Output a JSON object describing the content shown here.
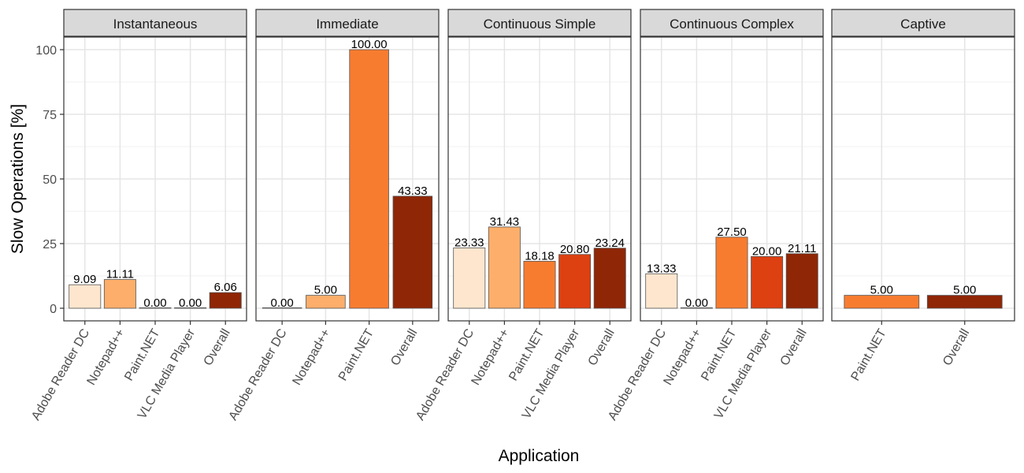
{
  "chart_data": {
    "type": "bar",
    "title": "",
    "xlabel": "Application",
    "ylabel": "Slow Operations [%]",
    "ylim": [
      -4,
      105
    ],
    "yticks": [
      0,
      25,
      50,
      75,
      100
    ],
    "grid": true,
    "legend": "none",
    "colors": {
      "Adobe Reader DC": "#FEE6CE",
      "Notepad++": "#FDAE6B",
      "Paint.NET": "#F87C30",
      "VLC Media Player": "#DD4011",
      "Overall": "#8F2606"
    },
    "facets": [
      {
        "name": "Instantaneous",
        "categories": [
          "Adobe Reader DC",
          "Notepad++",
          "Paint.NET",
          "VLC Media Player",
          "Overall"
        ],
        "values": [
          9.09,
          11.11,
          0.0,
          0.0,
          6.06
        ],
        "labels": [
          "9.09",
          "11.11",
          "0.00",
          "0.00",
          "6.06"
        ]
      },
      {
        "name": "Immediate",
        "categories": [
          "Adobe Reader DC",
          "Notepad++",
          "Paint.NET",
          "Overall"
        ],
        "values": [
          0.0,
          5.0,
          100.0,
          43.33
        ],
        "labels": [
          "0.00",
          "5.00",
          "100.00",
          "43.33"
        ]
      },
      {
        "name": "Continuous Simple",
        "categories": [
          "Adobe Reader DC",
          "Notepad++",
          "Paint.NET",
          "VLC Media Player",
          "Overall"
        ],
        "values": [
          23.33,
          31.43,
          18.18,
          20.8,
          23.24
        ],
        "labels": [
          "23.33",
          "31.43",
          "18.18",
          "20.80",
          "23.24"
        ]
      },
      {
        "name": "Continuous Complex",
        "categories": [
          "Adobe Reader DC",
          "Notepad++",
          "Paint.NET",
          "VLC Media Player",
          "Overall"
        ],
        "values": [
          13.33,
          0.0,
          27.5,
          20.0,
          21.11
        ],
        "labels": [
          "13.33",
          "0.00",
          "27.50",
          "20.00",
          "21.11"
        ]
      },
      {
        "name": "Captive",
        "categories": [
          "Paint.NET",
          "Overall"
        ],
        "values": [
          5.0,
          5.0
        ],
        "labels": [
          "5.00",
          "5.00"
        ]
      }
    ]
  }
}
